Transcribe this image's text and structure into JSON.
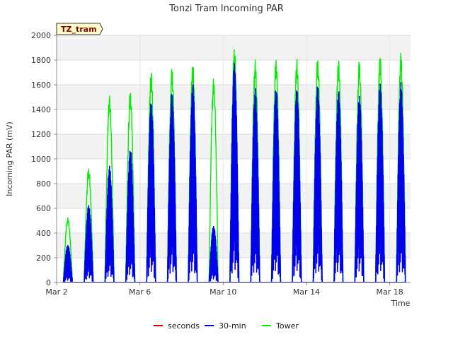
{
  "chart_data": {
    "type": "line",
    "title": "Tonzi Tram Incoming PAR",
    "xlabel": "Time",
    "ylabel": "Incoming PAR (mV)",
    "ylim": [
      0,
      2000
    ],
    "xlim": [
      0,
      17
    ],
    "x_unit": "days since Mar 2",
    "yticks": [
      0,
      200,
      400,
      600,
      800,
      1000,
      1200,
      1400,
      1600,
      1800,
      2000
    ],
    "xticks": [
      {
        "pos": 0,
        "label": "Mar 2"
      },
      {
        "pos": 4,
        "label": "Mar 6"
      },
      {
        "pos": 8,
        "label": "Mar 10"
      },
      {
        "pos": 12,
        "label": "Mar 14"
      },
      {
        "pos": 16,
        "label": "Mar 18"
      }
    ],
    "tag": "TZ_tram",
    "legend_position": "bottom",
    "grid": true,
    "series": [
      {
        "name": "seconds",
        "color": "#dd0000",
        "peaks": []
      },
      {
        "name": "30-min",
        "color": "#0000ee",
        "peaks": [
          310,
          640,
          960,
          1110,
          1500,
          1570,
          1650,
          470,
          1820,
          1600,
          1620,
          1610,
          1630,
          1590,
          1560,
          1650,
          1650
        ]
      },
      {
        "name": "Tower",
        "color": "#00ee00",
        "peaks": [
          530,
          940,
          1530,
          1570,
          1730,
          1760,
          1800,
          1670,
          1930,
          1820,
          1840,
          1830,
          1840,
          1830,
          1820,
          1870,
          1880
        ]
      }
    ]
  }
}
